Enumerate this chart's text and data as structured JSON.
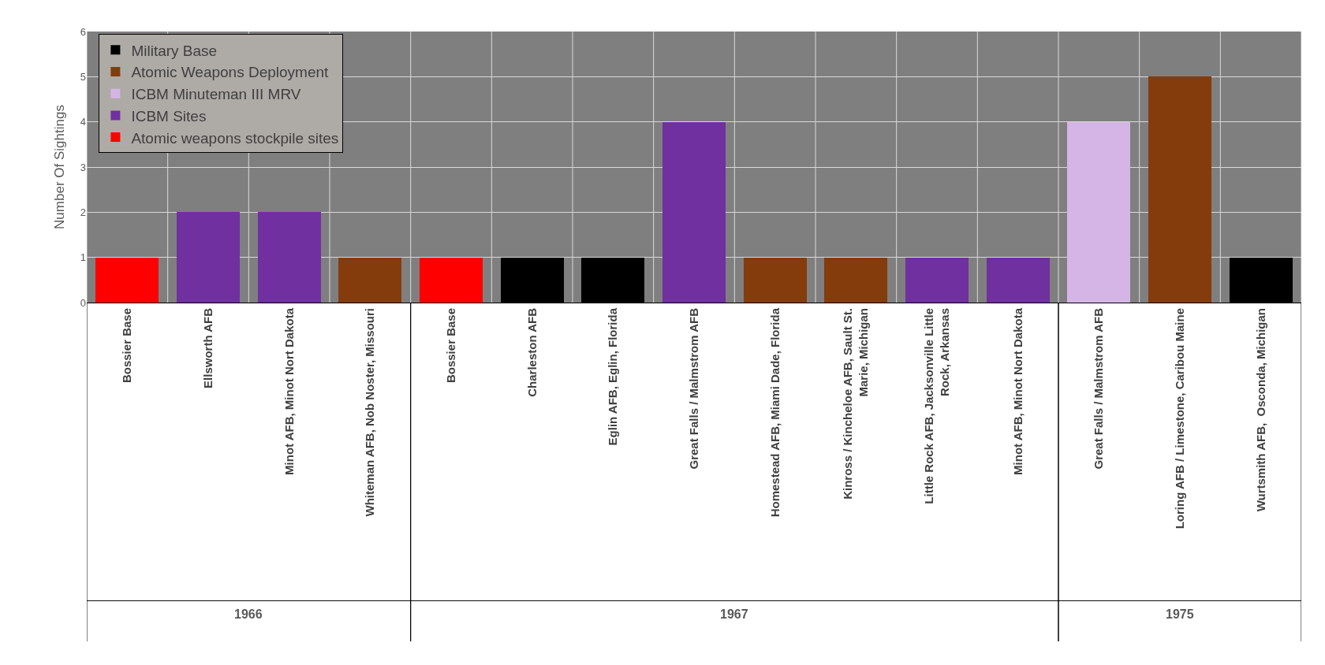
{
  "chart_data": {
    "type": "bar",
    "ylabel": "Number Of Sightings",
    "categories": [
      "Bossier Base",
      "Ellsworth AFB",
      "Minot AFB, Minot Nort Dakota",
      "Whiteman AFB, Nob Noster, Missouri",
      "Bossier Base",
      "Charleston AFB",
      "Eglin AFB, Eglin, Florida",
      "Great Falls / Malmstrom AFB",
      "Homestead AFB, Miami Dade, Florida",
      "Kinross / Kincheloe AFB, Sault St. Marie, Michigan",
      "Little Rock AFB, Jacksonville Little Rock, Arkansas",
      "Minot AFB, Minot Nort Dakota",
      "Great Falls / Malmstrom AFB",
      "Loring AFB / Limestone, Caribou Maine",
      "Wurtsmith AFB,  Osconda, Michigan"
    ],
    "series": [
      {
        "name": "Military Base",
        "color": "#000000",
        "values": [
          null,
          null,
          null,
          null,
          null,
          1,
          1,
          null,
          null,
          null,
          null,
          null,
          null,
          null,
          1
        ]
      },
      {
        "name": "Atomic Weapons Deployment",
        "color": "#843c0c",
        "values": [
          null,
          null,
          null,
          1,
          null,
          null,
          null,
          null,
          1,
          1,
          null,
          null,
          null,
          5,
          null
        ]
      },
      {
        "name": "ICBM Minuteman III MRV",
        "color": "#d5b5e5",
        "values": [
          null,
          null,
          null,
          null,
          null,
          null,
          null,
          null,
          null,
          null,
          null,
          null,
          4,
          null,
          null
        ]
      },
      {
        "name": "ICBM Sites",
        "color": "#7030a0",
        "values": [
          null,
          2,
          2,
          null,
          null,
          null,
          null,
          4,
          null,
          null,
          1,
          1,
          null,
          null,
          null
        ]
      },
      {
        "name": "Atomic weapons stockpile sites",
        "color": "#ff0000",
        "values": [
          1,
          null,
          null,
          null,
          1,
          null,
          null,
          null,
          null,
          null,
          null,
          null,
          null,
          null,
          null
        ]
      }
    ],
    "stacked": true,
    "ylim": [
      0,
      6
    ],
    "yticks": [
      0,
      1,
      2,
      3,
      4,
      5,
      6
    ],
    "grid": true,
    "legend": "top left",
    "annotations": [
      "1966",
      "1967",
      "1975"
    ]
  }
}
